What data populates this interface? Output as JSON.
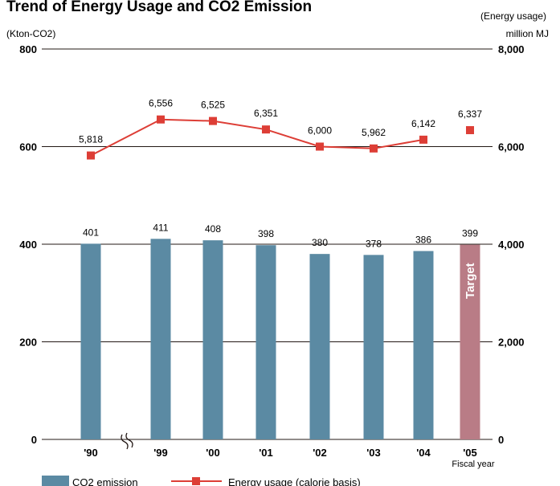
{
  "chart_data": {
    "type": "bar+line",
    "title": "Trend of Energy Usage and CO2 Emission",
    "left_axis": {
      "unit": "(Kton-CO2)",
      "ticks": [
        "800",
        "600",
        "400",
        "200",
        "0"
      ],
      "ylim": [
        0,
        800
      ]
    },
    "right_axis": {
      "unit_line1": "(Energy usage)",
      "unit_line2": "million MJ",
      "ticks": [
        "8,000",
        "6,000",
        "4,000",
        "2,000",
        "0"
      ],
      "ylim": [
        0,
        8000
      ]
    },
    "x_caption": "Fiscal year",
    "categories": [
      "'90",
      "'99",
      "'00",
      "'01",
      "'02",
      "'03",
      "'04",
      "'05"
    ],
    "series": [
      {
        "name": "CO2 emission",
        "type": "bar",
        "axis": "left",
        "values": [
          401,
          411,
          408,
          398,
          380,
          378,
          386,
          399
        ],
        "labels": [
          "401",
          "411",
          "408",
          "398",
          "380",
          "378",
          "386",
          "399"
        ]
      },
      {
        "name": "Energy usage (calorie basis)",
        "type": "line",
        "axis": "right",
        "values": [
          5818,
          6556,
          6525,
          6351,
          6000,
          5962,
          6142,
          6337
        ],
        "labels": [
          "5,818",
          "6,556",
          "6,525",
          "6,351",
          "6,000",
          "5,962",
          "6,142",
          "6,337"
        ]
      }
    ],
    "target_label": "Target",
    "legend": {
      "bar": "CO2 emission",
      "line": "Energy usage (calorie basis)",
      "placement": "bottom"
    },
    "colors": {
      "bar": "#5b8aa3",
      "target_bar": "#b97c86",
      "line": "#dd3e36",
      "marker": "#dd3e36",
      "grid": "#231815"
    }
  }
}
